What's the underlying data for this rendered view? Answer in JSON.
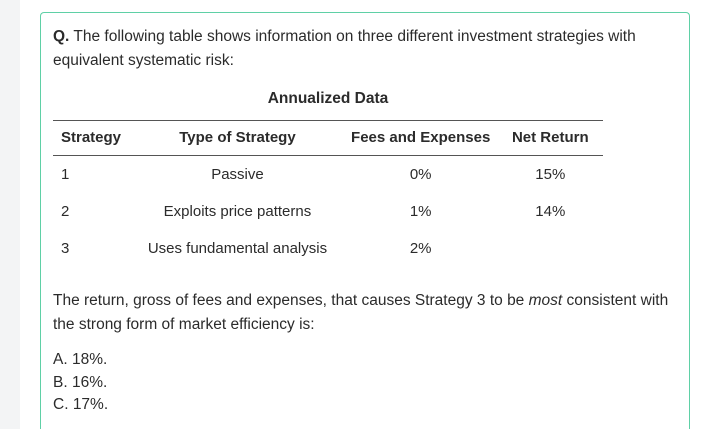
{
  "question": {
    "label": "Q.",
    "text": "The following table shows information on three different investment strategies with equivalent systematic risk:"
  },
  "table": {
    "caption": "Annualized Data",
    "headers": {
      "strategy": "Strategy",
      "type": "Type of Strategy",
      "fees": "Fees and Expenses",
      "net_return": "Net Return"
    },
    "rows": [
      {
        "strategy": "1",
        "type": "Passive",
        "fees": "0%",
        "net_return": "15%"
      },
      {
        "strategy": "2",
        "type": "Exploits price patterns",
        "fees": "1%",
        "net_return": "14%"
      },
      {
        "strategy": "3",
        "type": "Uses fundamental analysis",
        "fees": "2%",
        "net_return": ""
      }
    ]
  },
  "prompt": {
    "before": "The return, gross of fees and expenses, that causes Strategy 3 to be ",
    "emphasis": "most",
    "after": " consistent with the strong form of market efficiency is:"
  },
  "options": [
    {
      "letter": "A.",
      "text": "18%."
    },
    {
      "letter": "B.",
      "text": "16%."
    },
    {
      "letter": "C.",
      "text": "17%."
    }
  ],
  "colors": {
    "card_border": "#5fd0a6",
    "text": "#2b2b2b"
  }
}
